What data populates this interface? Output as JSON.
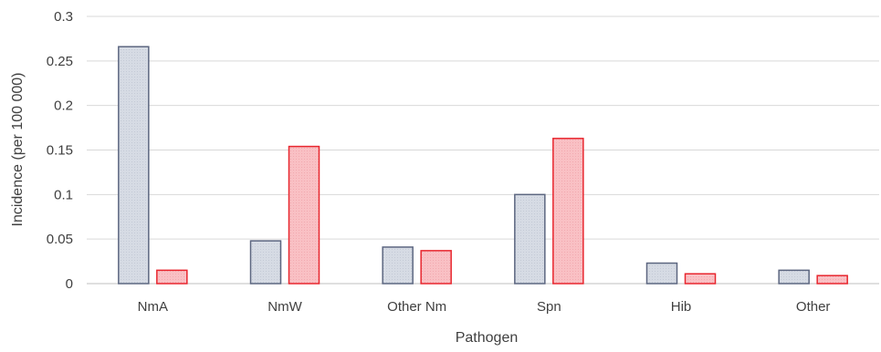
{
  "chart_data": {
    "type": "bar",
    "title": "",
    "xlabel": "Pathogen",
    "ylabel": "Incidence (per 100 000)",
    "ylim": [
      0,
      0.3
    ],
    "yticks": [
      0,
      0.05,
      0.1,
      0.15,
      0.2,
      0.25,
      0.3
    ],
    "ytick_labels": [
      "0",
      "0.05",
      "0.1",
      "0.15",
      "0.2",
      "0.25",
      "0.3"
    ],
    "grid": true,
    "legend": "none",
    "categories": [
      "NmA",
      "NmW",
      "Other Nm",
      "Spn",
      "Hib",
      "Other"
    ],
    "series": [
      {
        "values": [
          0.266,
          0.048,
          0.041,
          0.1,
          0.023,
          0.015
        ],
        "fill": "#d6dbe4",
        "stroke": "#5c6680"
      },
      {
        "values": [
          0.015,
          0.154,
          0.037,
          0.163,
          0.011,
          0.009
        ],
        "fill": "#f9c0c4",
        "stroke": "#e8262e"
      }
    ]
  }
}
